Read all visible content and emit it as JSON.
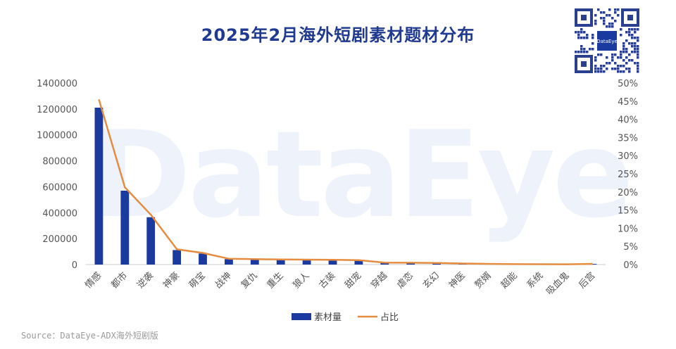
{
  "title": "2025年2月海外短剧素材题材分布",
  "watermark": "DataEye",
  "qr_label": "DataEye",
  "source": "Source：DataEye-ADX海外短剧版",
  "colors": {
    "bar": "#1a3a9f",
    "line": "#e48c3f",
    "title": "#1f3a8f"
  },
  "chart_data": {
    "type": "bar",
    "categories": [
      "情感",
      "都市",
      "逆袭",
      "神豪",
      "萌宝",
      "战神",
      "复仇",
      "重生",
      "狼人",
      "古装",
      "甜宠",
      "穿越",
      "虐恋",
      "玄幻",
      "神医",
      "赘婿",
      "超能",
      "系统",
      "吸血鬼",
      "后宫"
    ],
    "series": [
      {
        "name": "素材量",
        "type": "bar",
        "axis": "left",
        "values": [
          1210000,
          570000,
          365000,
          112000,
          85000,
          42000,
          40000,
          37000,
          36000,
          35000,
          33000,
          14000,
          12000,
          11000,
          8000,
          5000,
          3000,
          2500,
          2000,
          5000
        ]
      },
      {
        "name": "占比",
        "type": "line",
        "axis": "right",
        "values": [
          45.5,
          21.3,
          13.7,
          4.2,
          3.2,
          1.6,
          1.5,
          1.4,
          1.35,
          1.3,
          1.2,
          0.55,
          0.5,
          0.45,
          0.3,
          0.2,
          0.12,
          0.1,
          0.08,
          0.2
        ]
      }
    ],
    "ylim_left": [
      0,
      1400000
    ],
    "yticks_left": [
      "0",
      "200000",
      "400000",
      "600000",
      "800000",
      "1000000",
      "1200000",
      "1400000"
    ],
    "ylim_right": [
      0,
      50
    ],
    "yticks_right": [
      "0%",
      "5%",
      "10%",
      "15%",
      "20%",
      "25%",
      "30%",
      "35%",
      "40%",
      "45%",
      "50%"
    ],
    "legend": [
      "素材量",
      "占比"
    ],
    "legend_position": "bottom",
    "grid": false
  }
}
